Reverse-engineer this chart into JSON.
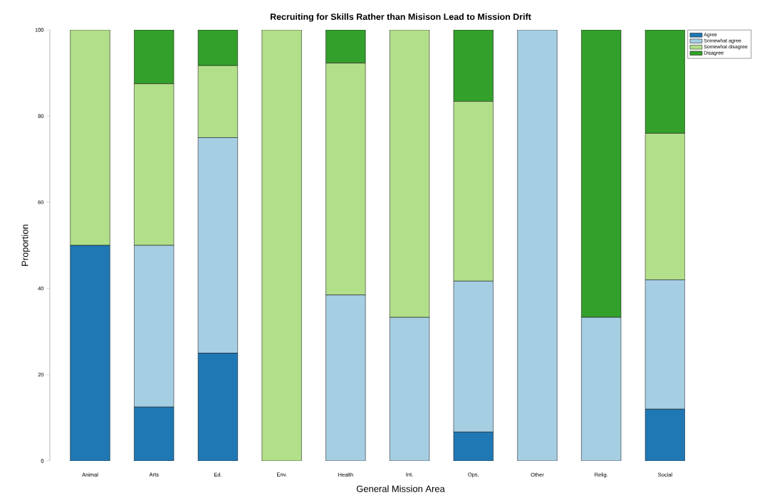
{
  "chart_data": {
    "type": "bar",
    "stacked": true,
    "title": "Recruiting for Skills Rather than Misison Lead to Mission Drift",
    "xlabel": "General Mission Area",
    "ylabel": "Proportion",
    "categories": [
      "Animal",
      "Arts",
      "Ed.",
      "Env.",
      "Health",
      "Int.",
      "Ops.",
      "Other",
      "Relig.",
      "Social"
    ],
    "series": [
      {
        "name": "Agree",
        "color": "#1f78b4",
        "values": [
          50,
          12.5,
          25,
          0,
          0,
          0,
          6.7,
          0,
          0,
          12
        ]
      },
      {
        "name": "Somewhat agree",
        "color": "#a6cee3",
        "values": [
          0,
          37.5,
          50,
          0,
          38.5,
          33.3,
          35,
          100,
          33.3,
          30
        ]
      },
      {
        "name": "Somewhat disagree",
        "color": "#b2df8a",
        "values": [
          50,
          37.5,
          16.7,
          100,
          53.8,
          66.7,
          41.7,
          0,
          0,
          34
        ]
      },
      {
        "name": "Disagree",
        "color": "#33a02c",
        "values": [
          0,
          12.5,
          8.3,
          0,
          7.7,
          0,
          16.6,
          0,
          66.7,
          24
        ]
      }
    ],
    "ylim": [
      0,
      100
    ],
    "yticks": [
      0,
      20,
      40,
      60,
      80,
      100
    ],
    "legend": "top right"
  }
}
